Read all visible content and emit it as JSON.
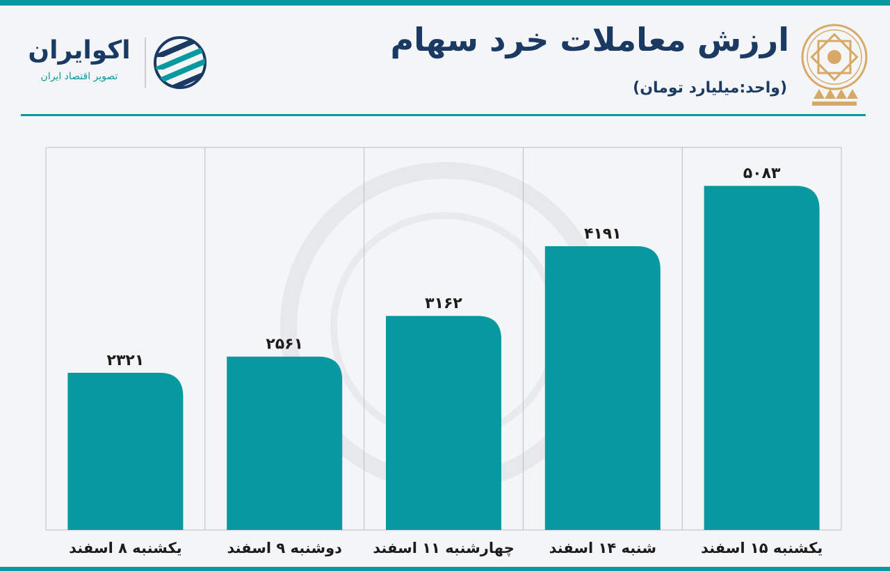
{
  "header": {
    "title": "ارزش معاملات خرد سهام",
    "subtitle": "(واحد:میلیارد تومان)"
  },
  "brand": {
    "name": "اکوایران",
    "tagline": "تصویر اقتصاد ایران",
    "logo_icon": "stripes-circle-logo-icon",
    "emblem_icon": "stock-exchange-emblem-icon"
  },
  "colors": {
    "bar": "#069aa0",
    "title": "#1a3a63",
    "accent": "#069aa0",
    "emblem": "#d8a866",
    "grid": "#b9bcc2"
  },
  "chart_data": {
    "type": "bar",
    "categories": [
      "یکشنبه ۸ اسفند",
      "دوشنبه ۹ اسفند",
      "چهارشنبه ۱۱ اسفند",
      "شنبه ۱۴ اسفند",
      "یکشنبه ۱۵ اسفند"
    ],
    "values": [
      2321,
      2561,
      3162,
      4191,
      5083
    ],
    "value_labels": [
      "۲۳۲۱",
      "۲۵۶۱",
      "۳۱۶۲",
      "۴۱۹۱",
      "۵۰۸۳"
    ],
    "ylim": [
      0,
      5650
    ],
    "grid": "vertical separators",
    "legend": "none"
  }
}
